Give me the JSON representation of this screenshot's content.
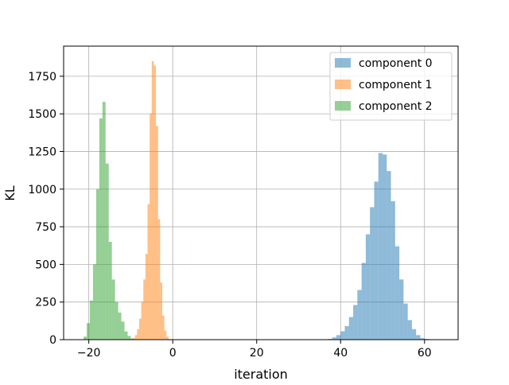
{
  "chart_data": {
    "type": "bar",
    "title": "",
    "xlabel": "iteration",
    "ylabel": "KL",
    "xlim": [
      -26,
      68
    ],
    "ylim": [
      0,
      1950
    ],
    "xticks": [
      -20,
      0,
      20,
      40,
      60
    ],
    "xtick_labels": [
      "−20",
      "0",
      "20",
      "40",
      "60"
    ],
    "yticks": [
      0,
      250,
      500,
      750,
      1000,
      1250,
      1500,
      1750
    ],
    "ytick_labels": [
      "0",
      "250",
      "500",
      "750",
      "1000",
      "1250",
      "1500",
      "1750"
    ],
    "grid": true,
    "legend_position": "top-right",
    "series": [
      {
        "name": "component 0",
        "color": "#1f77b4",
        "alpha": 0.5,
        "bin_start": 37.0,
        "bin_width": 1.0,
        "counts": [
          5,
          15,
          30,
          55,
          90,
          150,
          230,
          330,
          510,
          700,
          880,
          1050,
          1240,
          1230,
          1120,
          920,
          620,
          400,
          240,
          130,
          70,
          30,
          10,
          5
        ]
      },
      {
        "name": "component 1",
        "color": "#ff7f0e",
        "alpha": 0.5,
        "bin_start": -9.5,
        "bin_width": 0.5,
        "counts": [
          10,
          30,
          70,
          140,
          250,
          400,
          570,
          900,
          1500,
          1850,
          1820,
          1420,
          800,
          380,
          160,
          60,
          20,
          5
        ]
      },
      {
        "name": "component 2",
        "color": "#2ca02c",
        "alpha": 0.5,
        "bin_start": -21.25,
        "bin_width": 0.75,
        "counts": [
          20,
          110,
          260,
          500,
          1000,
          1470,
          1580,
          1170,
          650,
          400,
          250,
          180,
          120,
          55,
          25,
          8
        ]
      }
    ]
  }
}
